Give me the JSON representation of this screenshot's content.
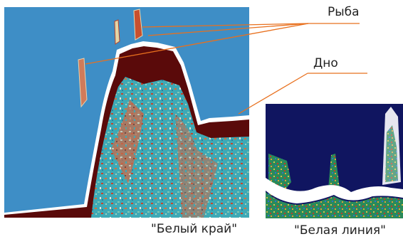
{
  "labels": {
    "fish": "Рыба",
    "bottom": "Дно"
  },
  "captions": {
    "white_edge": "\"Белый край\"",
    "white_line": "\"Белая линия\""
  },
  "colors": {
    "water": "#3e8ec6",
    "bottom_dark": "#5a0a0a",
    "white_edge": "#ffffff",
    "seabed_mid": "#3fa6b8",
    "right_water": "#101560",
    "leader_line": "#e8701e"
  }
}
